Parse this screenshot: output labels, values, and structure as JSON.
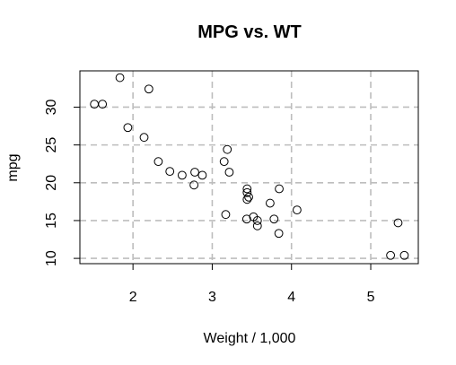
{
  "chart_data": {
    "type": "scatter",
    "title": "MPG vs. WT",
    "xlabel": "Weight / 1,000",
    "ylabel": "mpg",
    "xlim": [
      1.33,
      5.6
    ],
    "ylim": [
      9.3,
      34.8
    ],
    "xticks": [
      2,
      3,
      4,
      5
    ],
    "yticks": [
      10,
      15,
      20,
      25,
      30
    ],
    "xtick_labels": [
      "2",
      "3",
      "4",
      "5"
    ],
    "ytick_labels": [
      "10",
      "15",
      "20",
      "25",
      "30"
    ],
    "grid": true,
    "x": [
      2.62,
      2.875,
      2.32,
      3.215,
      3.44,
      3.46,
      3.57,
      3.19,
      3.15,
      3.44,
      3.44,
      4.07,
      3.73,
      3.78,
      5.25,
      5.424,
      5.345,
      2.2,
      1.615,
      1.835,
      2.465,
      3.52,
      3.435,
      3.84,
      3.845,
      1.935,
      2.14,
      1.513,
      3.17,
      2.77,
      3.57,
      2.78
    ],
    "y": [
      21.0,
      21.0,
      22.8,
      21.4,
      18.7,
      18.1,
      14.3,
      24.4,
      22.8,
      19.2,
      17.8,
      16.4,
      17.3,
      15.2,
      10.4,
      10.4,
      14.7,
      32.4,
      30.4,
      33.9,
      21.5,
      15.5,
      15.2,
      13.3,
      19.2,
      27.3,
      26.0,
      30.4,
      15.8,
      19.7,
      15.0,
      21.4
    ]
  }
}
